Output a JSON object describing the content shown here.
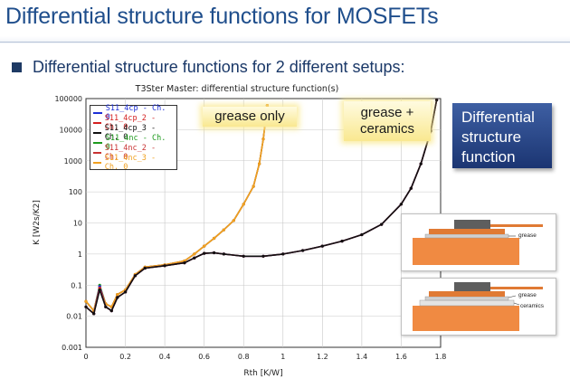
{
  "slide": {
    "title": "Differential structure functions for MOSFETs",
    "bullet": "Differential structure functions for 2 different setups:"
  },
  "callouts": {
    "grease_only": "grease only",
    "grease_ceramics_line1": "grease +",
    "grease_ceramics_line2": "ceramics",
    "dsf_line1": "Differential",
    "dsf_line2": "structure",
    "dsf_line3": "function"
  },
  "insets": {
    "top_label": "grease",
    "bottom_label_1": "grease",
    "bottom_label_2": "ceramics"
  },
  "legend_entries": [
    {
      "label": "S11_4cp - Ch. 0",
      "color": "#1d2fd6"
    },
    {
      "label": "S11_4cp_2 - Ch. 0",
      "color": "#d42020"
    },
    {
      "label": "S11_4cp_3 - Ch. 0",
      "color": "#111111"
    },
    {
      "label": "S11_4nc - Ch. 0",
      "color": "#1e9b1e"
    },
    {
      "label": "S11_4nc_2 - Ch. 0",
      "color": "#c83232"
    },
    {
      "label": "S11_4nc_3 - Ch. 0",
      "color": "#f0a020"
    }
  ],
  "chart_data": {
    "type": "line",
    "title": "T3Ster Master: differential structure function(s)",
    "xlabel": "Rth  [K/W]",
    "ylabel": "K  [W2s/K2]",
    "xlim": [
      0,
      1.8
    ],
    "ylim": [
      0.001,
      100000
    ],
    "yscale": "log",
    "grid": true,
    "legend_position": "top-left",
    "x_ticks": [
      "0",
      "0.2",
      "0.4",
      "0.6",
      "0.8",
      "1",
      "1.2",
      "1.4",
      "1.6",
      "1.8"
    ],
    "y_ticks": [
      "0.001",
      "0.01",
      "0.1",
      "1",
      "10",
      "100",
      "1000",
      "10000",
      "100000"
    ],
    "series": [
      {
        "name": "S11_4cp - Ch. 0",
        "x": [
          0,
          0.04,
          0.07,
          0.1,
          0.13,
          0.16,
          0.2,
          0.25,
          0.3,
          0.4,
          0.5,
          0.55,
          0.6,
          0.65,
          0.7,
          0.8,
          0.9,
          1.0,
          1.1,
          1.2,
          1.3,
          1.4,
          1.5,
          1.6,
          1.65,
          1.7,
          1.75,
          1.78
        ],
        "y": [
          0.02,
          0.012,
          0.09,
          0.02,
          0.015,
          0.04,
          0.06,
          0.2,
          0.35,
          0.42,
          0.52,
          0.75,
          1.05,
          1.1,
          1.0,
          0.85,
          0.85,
          1.0,
          1.3,
          1.8,
          2.6,
          4.2,
          9,
          40,
          130,
          800,
          9000,
          90000
        ]
      },
      {
        "name": "S11_4cp_2 - Ch. 0",
        "x": [
          0,
          0.04,
          0.07,
          0.1,
          0.13,
          0.16,
          0.2,
          0.25,
          0.3,
          0.4,
          0.5,
          0.55,
          0.6,
          0.65,
          0.7,
          0.8,
          0.9,
          1.0,
          1.1,
          1.2,
          1.3,
          1.4,
          1.5,
          1.6,
          1.65,
          1.7,
          1.75,
          1.78
        ],
        "y": [
          0.02,
          0.012,
          0.08,
          0.02,
          0.015,
          0.04,
          0.06,
          0.2,
          0.35,
          0.42,
          0.52,
          0.75,
          1.05,
          1.1,
          1.0,
          0.85,
          0.85,
          1.0,
          1.3,
          1.8,
          2.6,
          4.2,
          9,
          40,
          130,
          800,
          9000,
          90000
        ]
      },
      {
        "name": "S11_4cp_3 - Ch. 0",
        "x": [
          0,
          0.04,
          0.07,
          0.1,
          0.13,
          0.16,
          0.2,
          0.25,
          0.3,
          0.4,
          0.5,
          0.55,
          0.6,
          0.65,
          0.7,
          0.8,
          0.9,
          1.0,
          1.1,
          1.2,
          1.3,
          1.4,
          1.5,
          1.6,
          1.65,
          1.7,
          1.75,
          1.78
        ],
        "y": [
          0.02,
          0.012,
          0.07,
          0.02,
          0.015,
          0.04,
          0.06,
          0.2,
          0.35,
          0.42,
          0.52,
          0.75,
          1.05,
          1.1,
          1.0,
          0.85,
          0.85,
          1.0,
          1.3,
          1.8,
          2.6,
          4.2,
          9,
          40,
          130,
          800,
          9000,
          90000
        ]
      },
      {
        "name": "S11_4nc - Ch. 0",
        "x": [
          0,
          0.04,
          0.07,
          0.1,
          0.13,
          0.16,
          0.2,
          0.25,
          0.3,
          0.4,
          0.5,
          0.55,
          0.6,
          0.65,
          0.7,
          0.75,
          0.8,
          0.85,
          0.88,
          0.9,
          0.92
        ],
        "y": [
          0.03,
          0.015,
          0.1,
          0.025,
          0.02,
          0.05,
          0.07,
          0.22,
          0.38,
          0.45,
          0.6,
          1.0,
          1.8,
          3.2,
          6,
          12,
          40,
          150,
          800,
          5000,
          60000
        ]
      },
      {
        "name": "S11_4nc_2 - Ch. 0",
        "x": [
          0,
          0.04,
          0.07,
          0.1,
          0.13,
          0.16,
          0.2,
          0.25,
          0.3,
          0.4,
          0.5,
          0.55,
          0.6,
          0.65,
          0.7,
          0.75,
          0.8,
          0.85,
          0.88,
          0.9,
          0.92
        ],
        "y": [
          0.03,
          0.015,
          0.09,
          0.025,
          0.02,
          0.05,
          0.07,
          0.22,
          0.38,
          0.45,
          0.6,
          1.0,
          1.8,
          3.2,
          6,
          12,
          40,
          150,
          800,
          5000,
          60000
        ]
      },
      {
        "name": "S11_4nc_3 - Ch. 0",
        "x": [
          0,
          0.04,
          0.07,
          0.1,
          0.13,
          0.16,
          0.2,
          0.25,
          0.3,
          0.4,
          0.5,
          0.55,
          0.6,
          0.65,
          0.7,
          0.75,
          0.8,
          0.85,
          0.88,
          0.9,
          0.92
        ],
        "y": [
          0.03,
          0.015,
          0.08,
          0.025,
          0.02,
          0.05,
          0.07,
          0.22,
          0.38,
          0.45,
          0.6,
          1.0,
          1.8,
          3.2,
          6,
          12,
          40,
          150,
          800,
          5000,
          60000
        ]
      }
    ]
  }
}
